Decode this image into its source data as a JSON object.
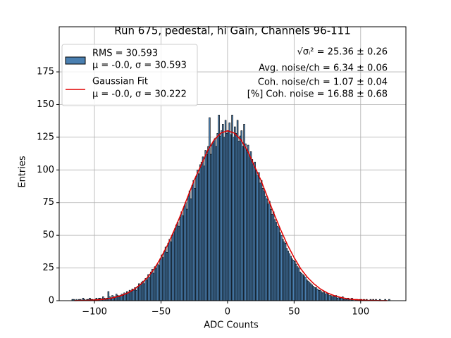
{
  "chart_data": {
    "type": "histogram",
    "title": "Run 675, pedestal, hi Gain, Channels 96-111",
    "xlabel": "ADC Counts",
    "ylabel": "Entries",
    "hist_label": [
      "RMS = 30.593",
      "μ = -0.0, σ = 30.593"
    ],
    "color": "#4a7fb0",
    "edgecolor": "#000000",
    "bins": [
      -117,
      -116,
      -115,
      -114,
      -113,
      -112,
      -111,
      -110,
      -109,
      -108,
      -107,
      -106,
      -105,
      -104,
      -103,
      -102,
      -101,
      -100,
      -99,
      -98,
      -97,
      -96,
      -95,
      -94,
      -93,
      -92,
      -91,
      -90,
      -89,
      -88,
      -87,
      -86,
      -85,
      -84,
      -83,
      -82,
      -81,
      -80,
      -79,
      -78,
      -77,
      -76,
      -75,
      -74,
      -73,
      -72,
      -71,
      -70,
      -69,
      -68,
      -67,
      -66,
      -65,
      -64,
      -63,
      -62,
      -61,
      -60,
      -59,
      -58,
      -57,
      -56,
      -55,
      -54,
      -53,
      -52,
      -51,
      -50,
      -49,
      -48,
      -47,
      -46,
      -45,
      -44,
      -43,
      -42,
      -41,
      -40,
      -39,
      -38,
      -37,
      -36,
      -35,
      -34,
      -33,
      -32,
      -31,
      -30,
      -29,
      -28,
      -27,
      -26,
      -25,
      -24,
      -23,
      -22,
      -21,
      -20,
      -19,
      -18,
      -17,
      -16,
      -15,
      -14,
      -13,
      -12,
      -11,
      -10,
      -9,
      -8,
      -7,
      -6,
      -5,
      -4,
      -3,
      -2,
      -1,
      0,
      1,
      2,
      3,
      4,
      5,
      6,
      7,
      8,
      9,
      10,
      11,
      12,
      13,
      14,
      15,
      16,
      17,
      18,
      19,
      20,
      21,
      22,
      23,
      24,
      25,
      26,
      27,
      28,
      29,
      30,
      31,
      32,
      33,
      34,
      35,
      36,
      37,
      38,
      39,
      40,
      41,
      42,
      43,
      44,
      45,
      46,
      47,
      48,
      49,
      50,
      51,
      52,
      53,
      54,
      55,
      56,
      57,
      58,
      59,
      60,
      61,
      62,
      63,
      64,
      65,
      66,
      67,
      68,
      69,
      70,
      71,
      72,
      73,
      74,
      75,
      76,
      77,
      78,
      79,
      80,
      81,
      82,
      83,
      84,
      85,
      86,
      87,
      88,
      89,
      90,
      91,
      92,
      93,
      94,
      95,
      96,
      97,
      98,
      99,
      100,
      101,
      102,
      103,
      104,
      105,
      106,
      107,
      108,
      109,
      110,
      111,
      112,
      113,
      114,
      115,
      116,
      117,
      118,
      119,
      120,
      121,
      122
    ],
    "counts": [
      1,
      1,
      0,
      1,
      0,
      1,
      1,
      0,
      2,
      1,
      0,
      1,
      1,
      2,
      1,
      1,
      0,
      1,
      2,
      1,
      2,
      2,
      1,
      3,
      2,
      1,
      2,
      7,
      3,
      2,
      4,
      3,
      3,
      5,
      4,
      3,
      4,
      5,
      4,
      6,
      5,
      7,
      6,
      8,
      7,
      9,
      8,
      10,
      8,
      11,
      13,
      12,
      14,
      15,
      13,
      17,
      16,
      20,
      18,
      22,
      24,
      21,
      26,
      25,
      28,
      27,
      32,
      35,
      33,
      38,
      41,
      37,
      44,
      47,
      45,
      50,
      52,
      55,
      58,
      60,
      57,
      64,
      68,
      65,
      72,
      75,
      70,
      80,
      84,
      78,
      88,
      92,
      86,
      95,
      100,
      97,
      104,
      106,
      110,
      103,
      115,
      112,
      118,
      140,
      112,
      120,
      122,
      124,
      118,
      128,
      142,
      126,
      130,
      135,
      125,
      138,
      128,
      130,
      136,
      127,
      142,
      125,
      133,
      128,
      138,
      122,
      126,
      130,
      118,
      135,
      120,
      115,
      119,
      110,
      114,
      108,
      105,
      106,
      100,
      96,
      98,
      90,
      92,
      86,
      84,
      80,
      78,
      74,
      76,
      70,
      66,
      68,
      62,
      60,
      57,
      56,
      52,
      50,
      47,
      45,
      44,
      40,
      38,
      36,
      34,
      32,
      31,
      30,
      28,
      26,
      25,
      22,
      21,
      20,
      19,
      18,
      16,
      15,
      14,
      13,
      12,
      11,
      10,
      10,
      9,
      8,
      8,
      7,
      6,
      7,
      5,
      6,
      5,
      4,
      4,
      3,
      4,
      3,
      4,
      2,
      3,
      2,
      2,
      3,
      1,
      2,
      1,
      2,
      1,
      1,
      2,
      1,
      0,
      1,
      1,
      0,
      1,
      1,
      0,
      1,
      0,
      1,
      0,
      0,
      1,
      0,
      1,
      0,
      1,
      0,
      0,
      1,
      0,
      0,
      0,
      1,
      0,
      0,
      1
    ],
    "fit": {
      "name": "Gaussian Fit",
      "label": "μ = -0.0, σ = 30.222",
      "color": "#e00000",
      "x": [
        -115,
        -110,
        -105,
        -100,
        -95,
        -90,
        -85,
        -80,
        -75,
        -70,
        -65,
        -60,
        -55,
        -50,
        -45,
        -40,
        -35,
        -30,
        -25,
        -20,
        -15,
        -10,
        -5,
        0,
        5,
        10,
        15,
        20,
        25,
        30,
        35,
        40,
        45,
        50,
        55,
        60,
        65,
        70,
        75,
        80,
        85,
        90,
        95,
        100,
        105,
        110,
        115,
        120
      ],
      "values": [
        0.1,
        0.2,
        0.3,
        0.55,
        0.9,
        1.5,
        2.5,
        3.9,
        5.9,
        8.8,
        12.8,
        17.9,
        24.4,
        33.0,
        42.7,
        54.0,
        66.2,
        79.2,
        92.3,
        103.4,
        114.7,
        123.1,
        128.2,
        130,
        128.2,
        123.1,
        114.7,
        103.4,
        92.3,
        79.2,
        66.2,
        54.0,
        42.7,
        33.0,
        24.4,
        17.9,
        12.8,
        8.8,
        5.9,
        3.9,
        2.5,
        1.5,
        0.9,
        0.55,
        0.3,
        0.2,
        0.1,
        0.05
      ]
    },
    "annotations": [
      "√σᵢ² = 25.36 ± 0.26",
      "Avg. noise/ch = 6.34 ± 0.06",
      "Coh. noise/ch = 1.07 ± 0.04",
      "[%] Coh. noise = 16.88 ± 0.68"
    ],
    "xlim": [
      -126.5,
      134
    ],
    "ylim": [
      0,
      209.5
    ],
    "xticks": [
      {
        "value": -100,
        "label": "−100"
      },
      {
        "value": -50,
        "label": "−50"
      },
      0,
      50,
      100
    ],
    "yticks": [
      0,
      25,
      50,
      75,
      100,
      125,
      150,
      175
    ],
    "grid": true,
    "legend": "upper left"
  }
}
